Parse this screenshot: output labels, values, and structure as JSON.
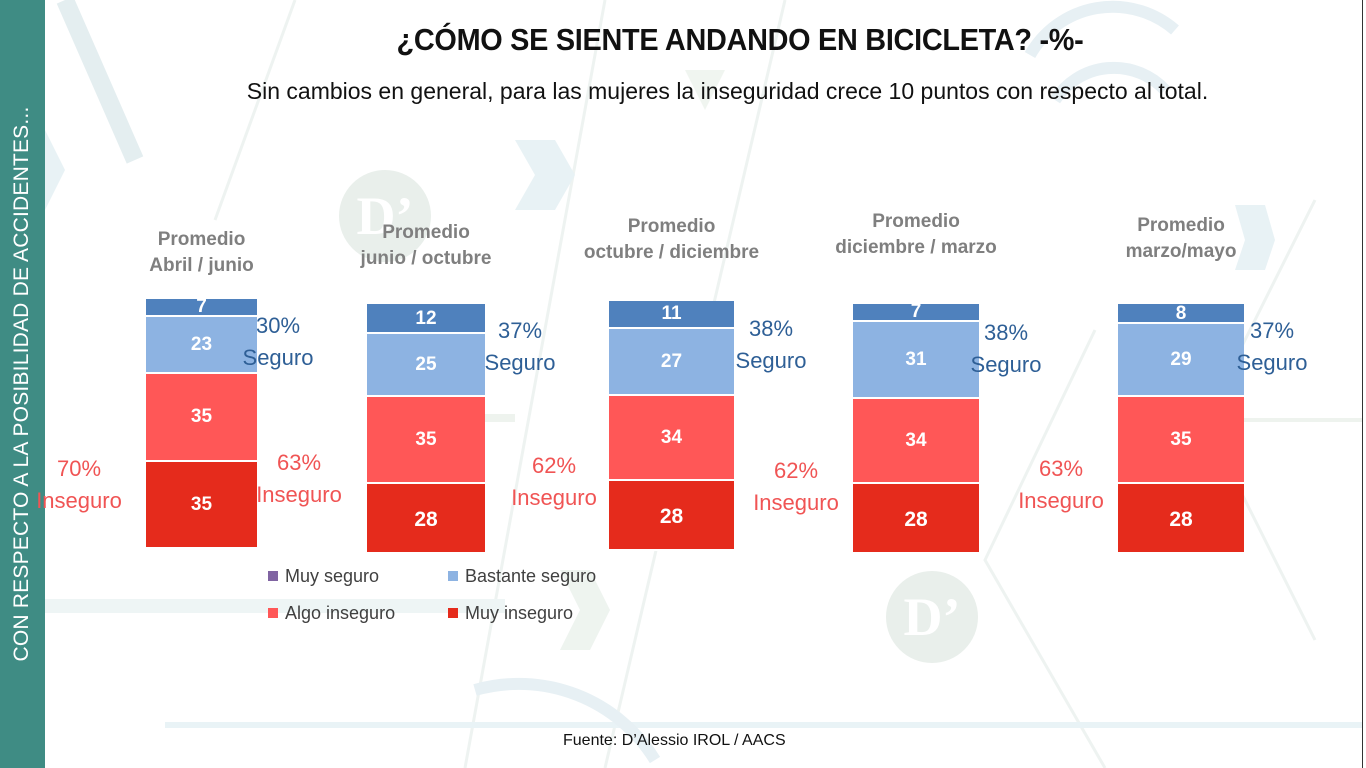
{
  "sidebar": {
    "text": "CON RESPECTO A LA POSIBILIDAD DE ACCIDENTES..."
  },
  "header": {
    "title": "¿CÓMO SE SIENTE ANDANDO EN BICICLETA? -%-",
    "subtitle": "Sin cambios en general, para las mujeres la inseguridad crece 10 puntos con respecto al total."
  },
  "colors": {
    "muy_seguro": "#4f81bd",
    "bastante_seguro": "#8db3e2",
    "algo_inseguro": "#ff5757",
    "muy_inseguro": "#e52b1c",
    "legend_muy_seguro": "#8064a2",
    "safe_text": "#2e5f96",
    "unsafe_text": "#f05454",
    "sidebar": "#3f8c84"
  },
  "chart_data": {
    "type": "bar",
    "stacked": true,
    "title": "¿CÓMO SE SIENTE ANDANDO EN BICICLETA? -%-",
    "categories": [
      [
        "Promedio",
        "Abril / junio"
      ],
      [
        "Promedio",
        "junio / octubre"
      ],
      [
        "Promedio",
        "octubre / diciembre"
      ],
      [
        "Promedio",
        "diciembre / marzo"
      ],
      [
        "Promedio",
        "marzo/mayo"
      ]
    ],
    "series": [
      {
        "name": "Muy seguro",
        "values": [
          7,
          12,
          11,
          7,
          8
        ]
      },
      {
        "name": "Bastante seguro",
        "values": [
          23,
          25,
          27,
          31,
          29
        ]
      },
      {
        "name": "Algo inseguro",
        "values": [
          35,
          35,
          34,
          34,
          35
        ]
      },
      {
        "name": "Muy inseguro",
        "values": [
          35,
          28,
          28,
          28,
          28
        ]
      }
    ],
    "totals": {
      "seguro": {
        "label": "Seguro",
        "values": [
          "30%",
          "37%",
          "38%",
          "38%",
          "37%"
        ]
      },
      "inseguro": {
        "label": "Inseguro",
        "values": [
          "70%",
          "63%",
          "62%",
          "62%",
          "63%"
        ]
      }
    },
    "legend": {
      "position": "bottom-left",
      "items": [
        "Muy seguro",
        "Bastante seguro",
        "Algo inseguro",
        "Muy inseguro"
      ]
    },
    "xlabel": "",
    "ylabel": "",
    "ylim": [
      0,
      100
    ],
    "grid": false
  },
  "footer": {
    "source": "Fuente: D’Alessio IROL / AACS"
  },
  "watermark": {
    "logo_text": "D’"
  }
}
